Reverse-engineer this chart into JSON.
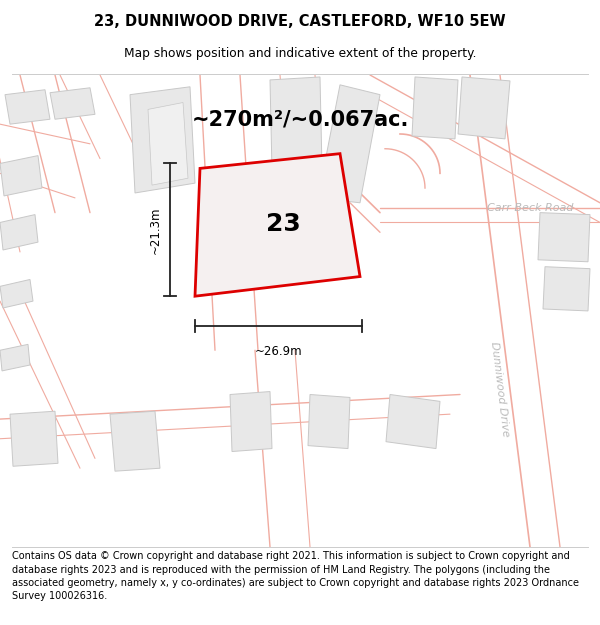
{
  "title": "23, DUNNIWOOD DRIVE, CASTLEFORD, WF10 5EW",
  "subtitle": "Map shows position and indicative extent of the property.",
  "area_text": "~270m²/~0.067ac.",
  "width_label": "~26.9m",
  "height_label": "~21.3m",
  "number_label": "23",
  "footer_text": "Contains OS data © Crown copyright and database right 2021. This information is subject to Crown copyright and database rights 2023 and is reproduced with the permission of HM Land Registry. The polygons (including the associated geometry, namely x, y co-ordinates) are subject to Crown copyright and database rights 2023 Ordnance Survey 100026316.",
  "map_bg": "#ffffff",
  "road_color": "#f0aba0",
  "building_fill": "#e8e8e8",
  "building_edge": "#c8c8c8",
  "property_fill": "#f5f0f0",
  "property_edge": "#dd0000",
  "dim_color": "#222222",
  "road_label_color": "#bbbbbb",
  "title_fontsize": 10.5,
  "subtitle_fontsize": 8.8,
  "area_fontsize": 15,
  "number_fontsize": 18,
  "dim_fontsize": 8.5,
  "footer_fontsize": 7.0
}
